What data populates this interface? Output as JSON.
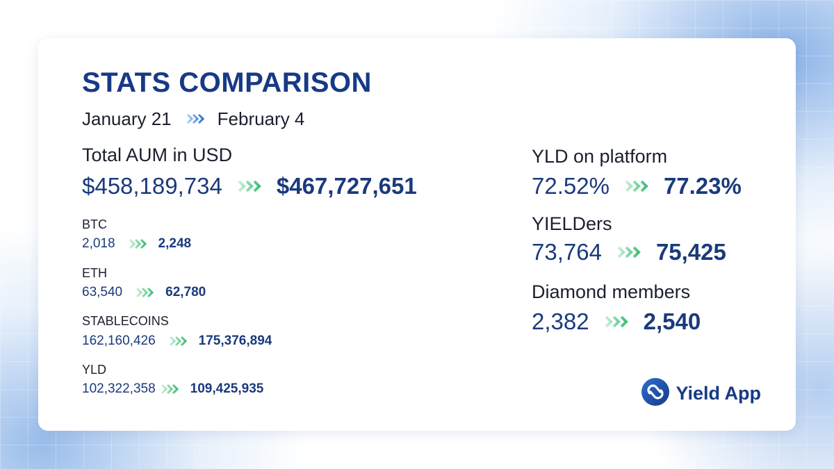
{
  "title": "STATS COMPARISON",
  "dates": {
    "from": "January 21",
    "to": "February 4"
  },
  "aum": {
    "label": "Total AUM in USD",
    "from": "$458,189,734",
    "to": "$467,727,651"
  },
  "assets": [
    {
      "label": "BTC",
      "from": "2,018",
      "to": "2,248"
    },
    {
      "label": "ETH",
      "from": "63,540",
      "to": "62,780"
    },
    {
      "label": "STABLECOINS",
      "from": "162,160,426",
      "to": "175,376,894"
    },
    {
      "label": "YLD",
      "from": "102,322,358",
      "to": "109,425,935"
    }
  ],
  "right_stats": [
    {
      "label": "YLD on platform",
      "from": "72.52%",
      "to": "77.23%"
    },
    {
      "label": "YIELDers",
      "from": "73,764",
      "to": "75,425"
    },
    {
      "label": "Diamond members",
      "from": "2,382",
      "to": "2,540"
    }
  ],
  "brand": {
    "name": "Yield App"
  },
  "colors": {
    "navy": "#1a3a7c",
    "arrow_blue": "#3b7fd6",
    "arrow_green": "#5cc98a"
  },
  "icons": {
    "arrow": "triple-chevron-right-icon",
    "logo": "yield-app-logo-icon"
  }
}
